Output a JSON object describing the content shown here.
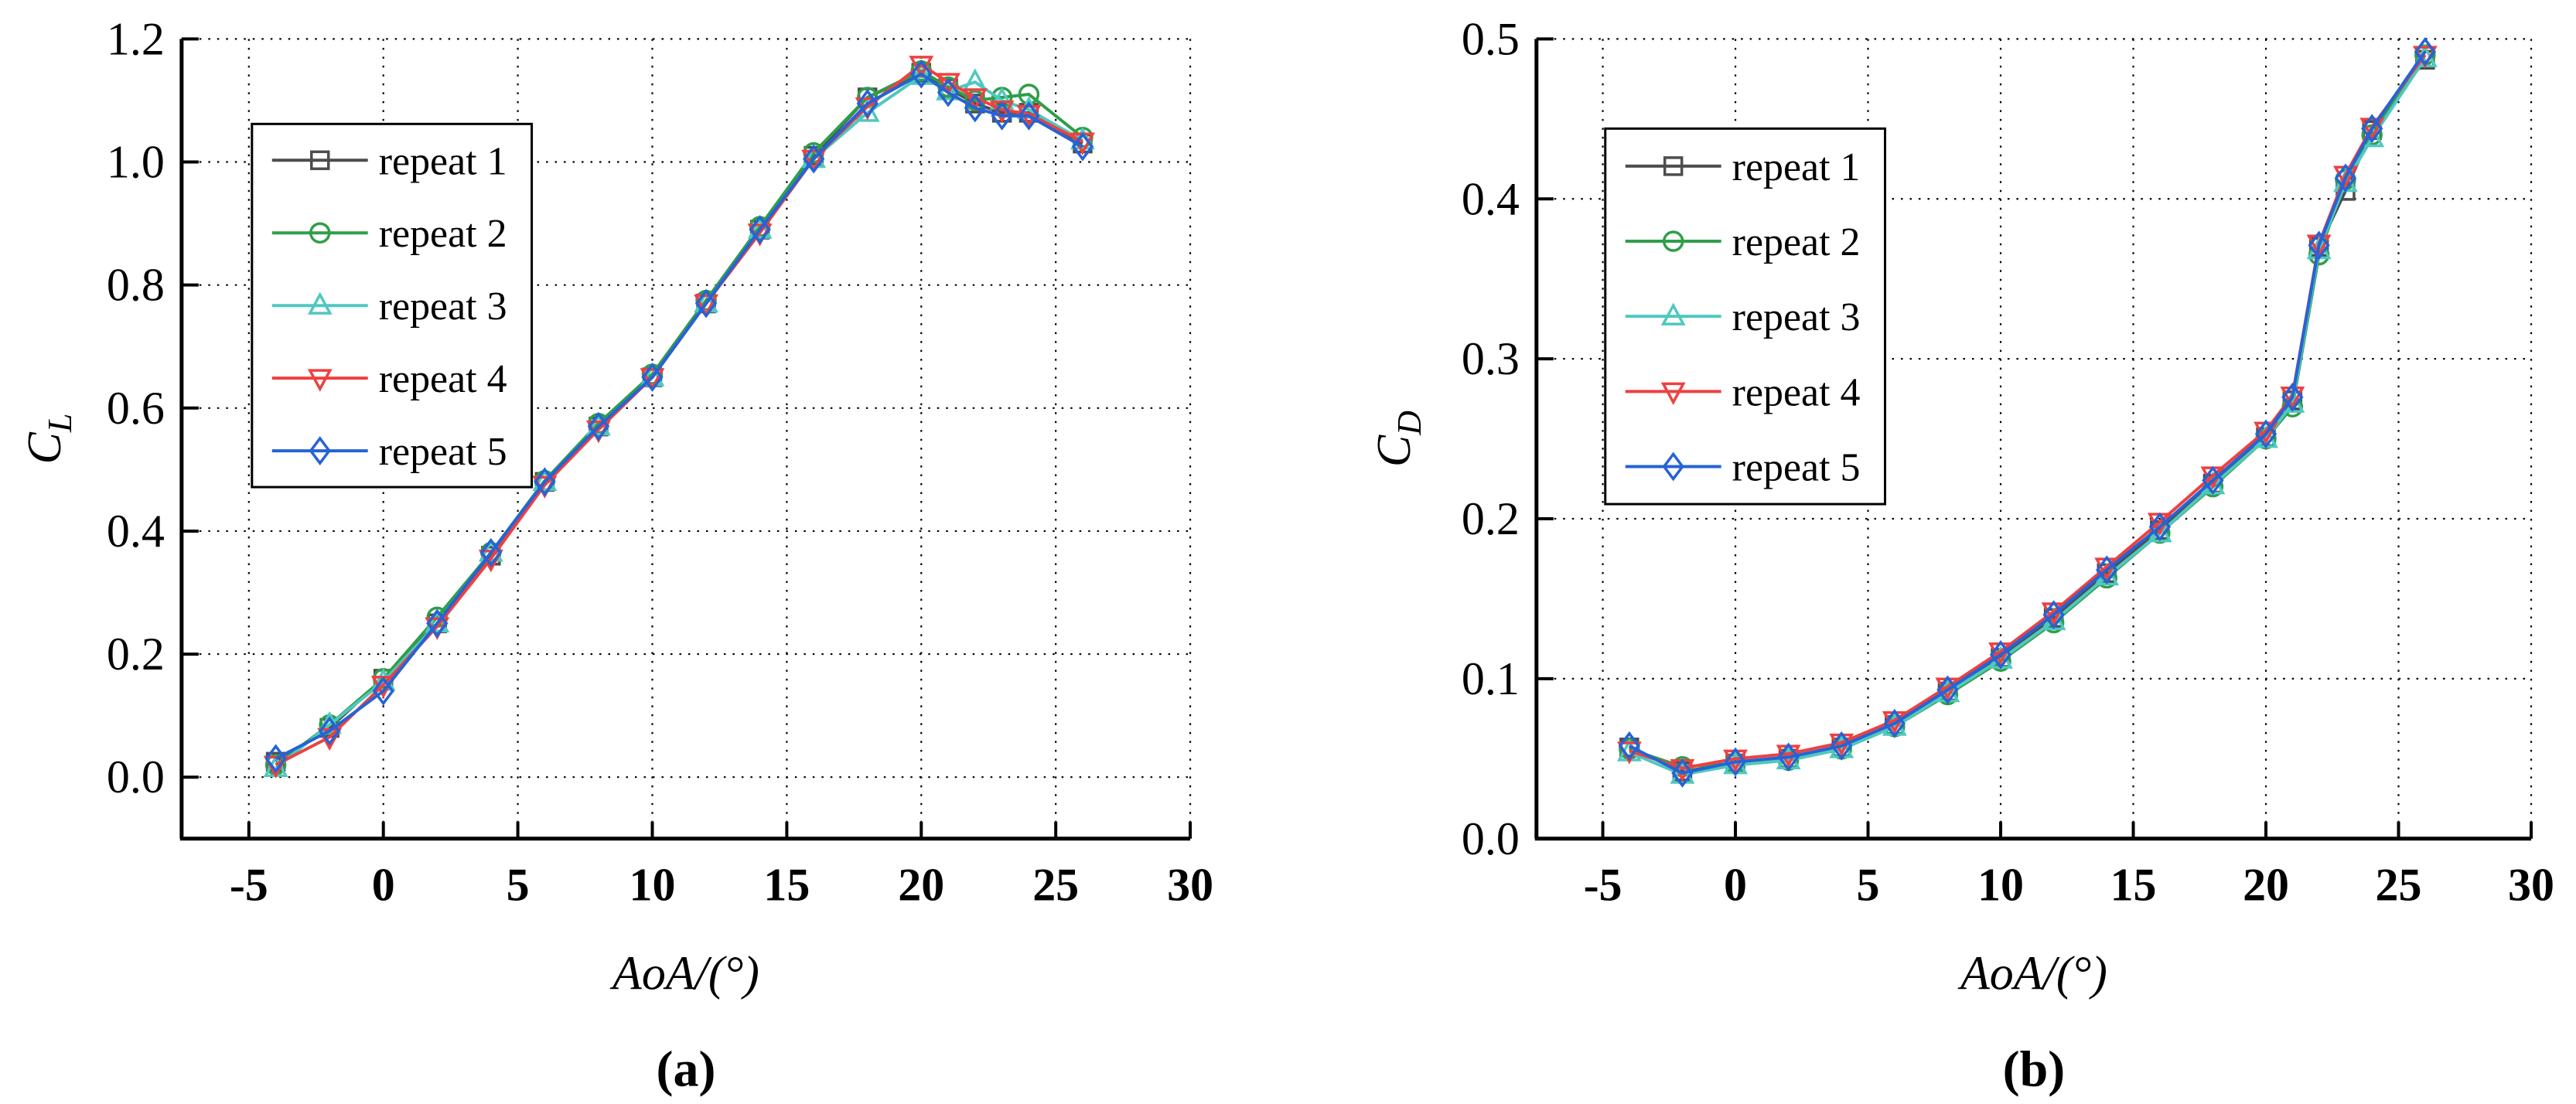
{
  "figure_background": "#ffffff",
  "grid_color": "#000000",
  "axis_color": "#000000",
  "chart_data": [
    {
      "id": "a",
      "type": "line",
      "caption": "(a)",
      "xlabel": "AoA/(°)",
      "ylabel": "C_L",
      "ylabel_main": "C",
      "ylabel_sub": "L",
      "xlim": [
        -7.5,
        30
      ],
      "ylim": [
        -0.1,
        1.2
      ],
      "xticks": [
        -5,
        0,
        5,
        10,
        15,
        20,
        25,
        30
      ],
      "yticks": [
        0.0,
        0.2,
        0.4,
        0.6,
        0.8,
        1.0,
        1.2
      ],
      "ytick_decimals": 1,
      "grid": true,
      "legend_position": "top-left",
      "x": [
        -4,
        -2,
        0,
        2,
        4,
        6,
        8,
        10,
        12,
        14,
        16,
        18,
        20,
        21,
        22,
        23,
        24,
        26
      ],
      "series": [
        {
          "name": "repeat 1",
          "color": "#4d4d4d",
          "marker": "square",
          "values": [
            0.025,
            0.08,
            0.16,
            0.25,
            0.36,
            0.48,
            0.57,
            0.65,
            0.77,
            0.89,
            1.01,
            1.105,
            1.145,
            1.12,
            1.095,
            1.08,
            1.08,
            1.03
          ]
        },
        {
          "name": "repeat 2",
          "color": "#2f9e49",
          "marker": "circle",
          "values": [
            0.02,
            0.085,
            0.16,
            0.26,
            0.365,
            0.482,
            0.575,
            0.655,
            0.775,
            0.895,
            1.015,
            1.105,
            1.148,
            1.122,
            1.1,
            1.105,
            1.11,
            1.04
          ]
        },
        {
          "name": "repeat 3",
          "color": "#4fc8c0",
          "marker": "triangle-up",
          "values": [
            0.015,
            0.085,
            0.155,
            0.25,
            0.365,
            0.48,
            0.57,
            0.65,
            0.77,
            0.89,
            1.005,
            1.08,
            1.14,
            1.115,
            1.13,
            1.1,
            1.085,
            1.035
          ]
        },
        {
          "name": "repeat 4",
          "color": "#ef4040",
          "marker": "triangle-down",
          "values": [
            0.02,
            0.065,
            0.15,
            0.245,
            0.355,
            0.475,
            0.565,
            0.65,
            0.77,
            0.885,
            1.005,
            1.09,
            1.158,
            1.13,
            1.105,
            1.085,
            1.078,
            1.033
          ]
        },
        {
          "name": "repeat 5",
          "color": "#2563d6",
          "marker": "diamond",
          "values": [
            0.03,
            0.075,
            0.14,
            0.25,
            0.365,
            0.48,
            0.57,
            0.65,
            0.77,
            0.89,
            1.005,
            1.095,
            1.143,
            1.113,
            1.088,
            1.075,
            1.075,
            1.025
          ]
        }
      ]
    },
    {
      "id": "b",
      "type": "line",
      "caption": "(b)",
      "xlabel": "AoA/(°)",
      "ylabel": "C_D",
      "ylabel_main": "C",
      "ylabel_sub": "D",
      "xlim": [
        -7.5,
        30
      ],
      "ylim": [
        0.0,
        0.5
      ],
      "xticks": [
        -5,
        0,
        5,
        10,
        15,
        20,
        25,
        30
      ],
      "yticks": [
        0.0,
        0.1,
        0.2,
        0.3,
        0.4,
        0.5
      ],
      "ytick_decimals": 1,
      "grid": true,
      "legend_position": "top-left",
      "x": [
        -4,
        -2,
        0,
        2,
        4,
        6,
        8,
        10,
        12,
        14,
        16,
        18,
        20,
        21,
        22,
        23,
        24,
        26
      ],
      "series": [
        {
          "name": "repeat 1",
          "color": "#4d4d4d",
          "marker": "square",
          "values": [
            0.057,
            0.042,
            0.047,
            0.05,
            0.057,
            0.071,
            0.092,
            0.113,
            0.138,
            0.166,
            0.193,
            0.222,
            0.251,
            0.274,
            0.37,
            0.405,
            0.443,
            0.487
          ]
        },
        {
          "name": "repeat 2",
          "color": "#2f9e49",
          "marker": "circle",
          "values": [
            0.056,
            0.045,
            0.047,
            0.049,
            0.056,
            0.07,
            0.09,
            0.111,
            0.135,
            0.163,
            0.191,
            0.22,
            0.25,
            0.27,
            0.365,
            0.412,
            0.44,
            0.49
          ]
        },
        {
          "name": "repeat 3",
          "color": "#4fc8c0",
          "marker": "triangle-up",
          "values": [
            0.054,
            0.04,
            0.046,
            0.049,
            0.056,
            0.07,
            0.091,
            0.112,
            0.136,
            0.164,
            0.191,
            0.221,
            0.25,
            0.272,
            0.368,
            0.41,
            0.438,
            0.488
          ]
        },
        {
          "name": "repeat 4",
          "color": "#ef4040",
          "marker": "triangle-down",
          "values": [
            0.055,
            0.044,
            0.05,
            0.053,
            0.06,
            0.074,
            0.095,
            0.117,
            0.142,
            0.17,
            0.198,
            0.227,
            0.255,
            0.277,
            0.372,
            0.415,
            0.445,
            0.49
          ]
        },
        {
          "name": "repeat 5",
          "color": "#2563d6",
          "marker": "diamond",
          "values": [
            0.058,
            0.041,
            0.048,
            0.051,
            0.058,
            0.072,
            0.093,
            0.115,
            0.14,
            0.168,
            0.195,
            0.224,
            0.253,
            0.276,
            0.371,
            0.413,
            0.444,
            0.492
          ]
        }
      ]
    }
  ]
}
